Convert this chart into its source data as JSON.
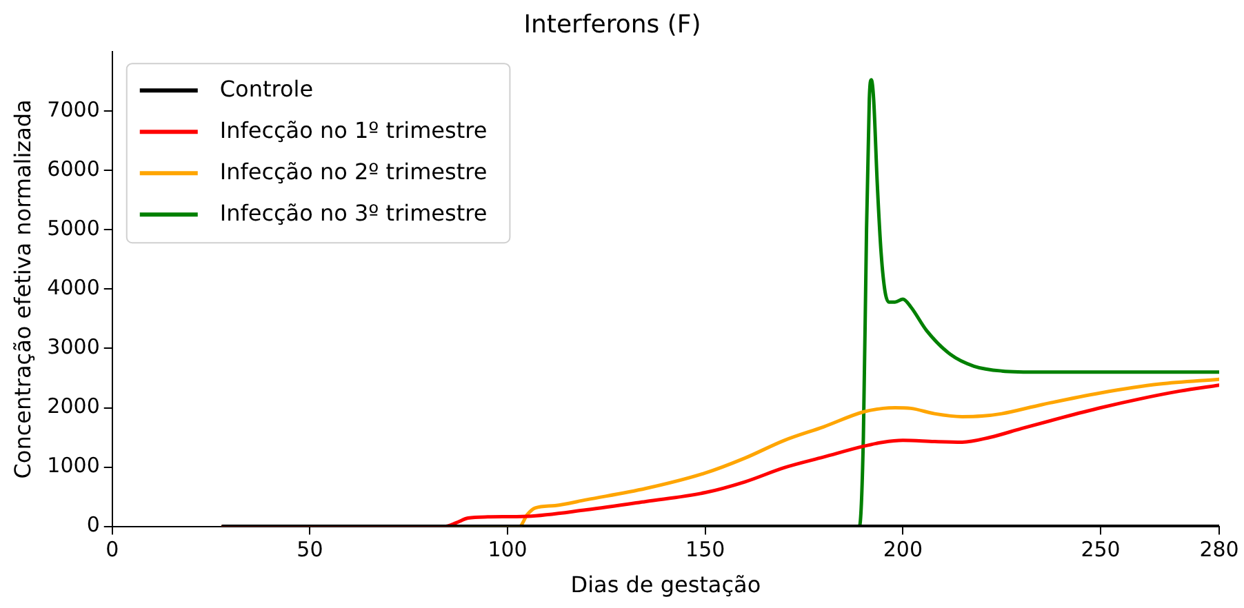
{
  "chart_data": {
    "type": "line",
    "title": "Interferons (F)",
    "xlabel": "Dias de gestação",
    "ylabel": "Concentração efetiva normalizada",
    "xlim": [
      0,
      280
    ],
    "xticks": [
      0,
      50,
      100,
      150,
      200,
      250,
      280
    ],
    "ylim": [
      0,
      8000
    ],
    "yticks": [
      0,
      1000,
      2000,
      3000,
      4000,
      5000,
      6000,
      7000
    ],
    "grid": false,
    "legend": "top left",
    "marker": "none",
    "line_style": "solid",
    "series": [
      {
        "name": "Controle",
        "color": "#000000",
        "x": [
          28,
          280
        ],
        "values": [
          0,
          0
        ]
      },
      {
        "name": "Infecção no 1º trimestre",
        "color": "#ff0000",
        "x": [
          28,
          84,
          87,
          90,
          95,
          105,
          120,
          135,
          150,
          160,
          170,
          180,
          190,
          195,
          200,
          208,
          215,
          222,
          230,
          240,
          250,
          260,
          270,
          280
        ],
        "values": [
          0,
          0,
          60,
          140,
          160,
          170,
          280,
          420,
          570,
          750,
          990,
          1170,
          1350,
          1420,
          1450,
          1430,
          1420,
          1500,
          1650,
          1830,
          2000,
          2150,
          2280,
          2380
        ]
      },
      {
        "name": "Infecção no 2º trimestre",
        "color": "#ffa500",
        "x": [
          28,
          103,
          105,
          107,
          112,
          120,
          135,
          150,
          160,
          170,
          180,
          190,
          195,
          198,
          202,
          208,
          215,
          220,
          225,
          235,
          250,
          265,
          280
        ],
        "values": [
          0,
          0,
          200,
          310,
          350,
          450,
          640,
          900,
          1150,
          1450,
          1680,
          1930,
          1990,
          2000,
          1990,
          1900,
          1850,
          1860,
          1900,
          2050,
          2250,
          2400,
          2480
        ]
      },
      {
        "name": "Infecção no 3º trimestre",
        "color": "#008000",
        "x": [
          28,
          189,
          190,
          190.8,
          191.5,
          192,
          192.6,
          193.5,
          194.5,
          195.5,
          196.5,
          198,
          200,
          202,
          206,
          212,
          218,
          225,
          235,
          280
        ],
        "values": [
          0,
          0,
          1500,
          5000,
          7200,
          7530,
          7200,
          5800,
          4600,
          3950,
          3780,
          3780,
          3830,
          3700,
          3300,
          2900,
          2700,
          2620,
          2600,
          2600
        ]
      }
    ]
  }
}
